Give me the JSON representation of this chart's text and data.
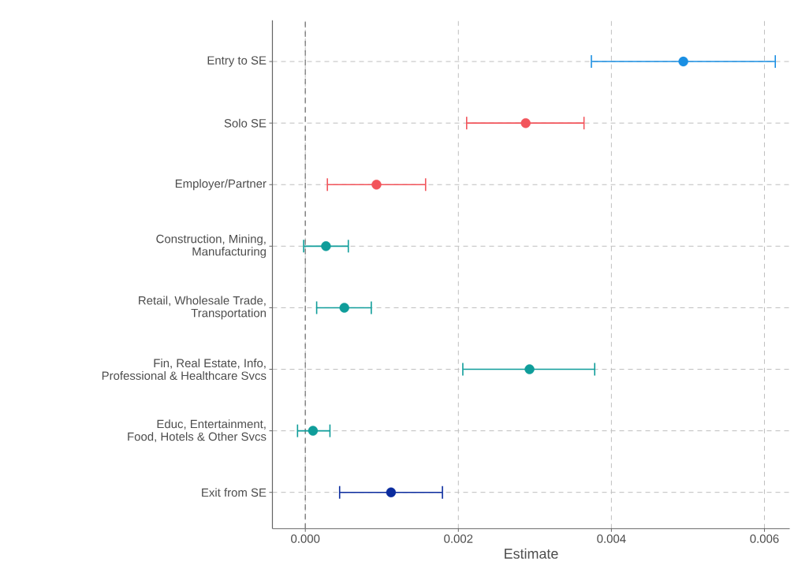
{
  "chart_data": {
    "type": "scatter",
    "orientation": "horizontal",
    "categories": [
      "Entry to SE",
      "Solo SE",
      "Employer/Partner",
      "Construction, Mining,\nManufacturing",
      "Retail, Wholesale Trade,\nTransportation",
      "Fin, Real Estate, Info,\nProfessional & Healthcare Svcs",
      "Educ, Entertainment,\nFood, Hotels & Other Svcs",
      "Exit from SE"
    ],
    "values": [
      0.00494,
      0.00288,
      0.00093,
      0.00027,
      0.00051,
      0.00293,
      0.0001,
      0.00112
    ],
    "errors": [
      [
        0.00373,
        0.00615
      ],
      [
        0.0021,
        0.00365
      ],
      [
        0.00028,
        0.00158
      ],
      [
        -3e-05,
        0.00057
      ],
      [
        0.00014,
        0.00087
      ],
      [
        0.00205,
        0.00379
      ],
      [
        -0.00011,
        0.00033
      ],
      [
        0.00044,
        0.0018
      ]
    ],
    "colors": [
      "#1a8fe3",
      "#f2545b",
      "#f2545b",
      "#0f9d9a",
      "#0f9d9a",
      "#0f9d9a",
      "#0f9d9a",
      "#0a2b9e"
    ],
    "xlabel": "Estimate",
    "xlim": [
      -0.00043,
      0.00633
    ],
    "xticks": [
      {
        "value": 0,
        "label": "0.000"
      },
      {
        "value": 0.002,
        "label": "0.002"
      },
      {
        "value": 0.004,
        "label": "0.004"
      },
      {
        "value": 0.006,
        "label": "0.006"
      }
    ],
    "grid": true,
    "marker": "circle",
    "ref_lines": [
      {
        "axis": "x",
        "value": 0,
        "color": "#7a7a7a",
        "line_style": "dashed"
      }
    ]
  }
}
